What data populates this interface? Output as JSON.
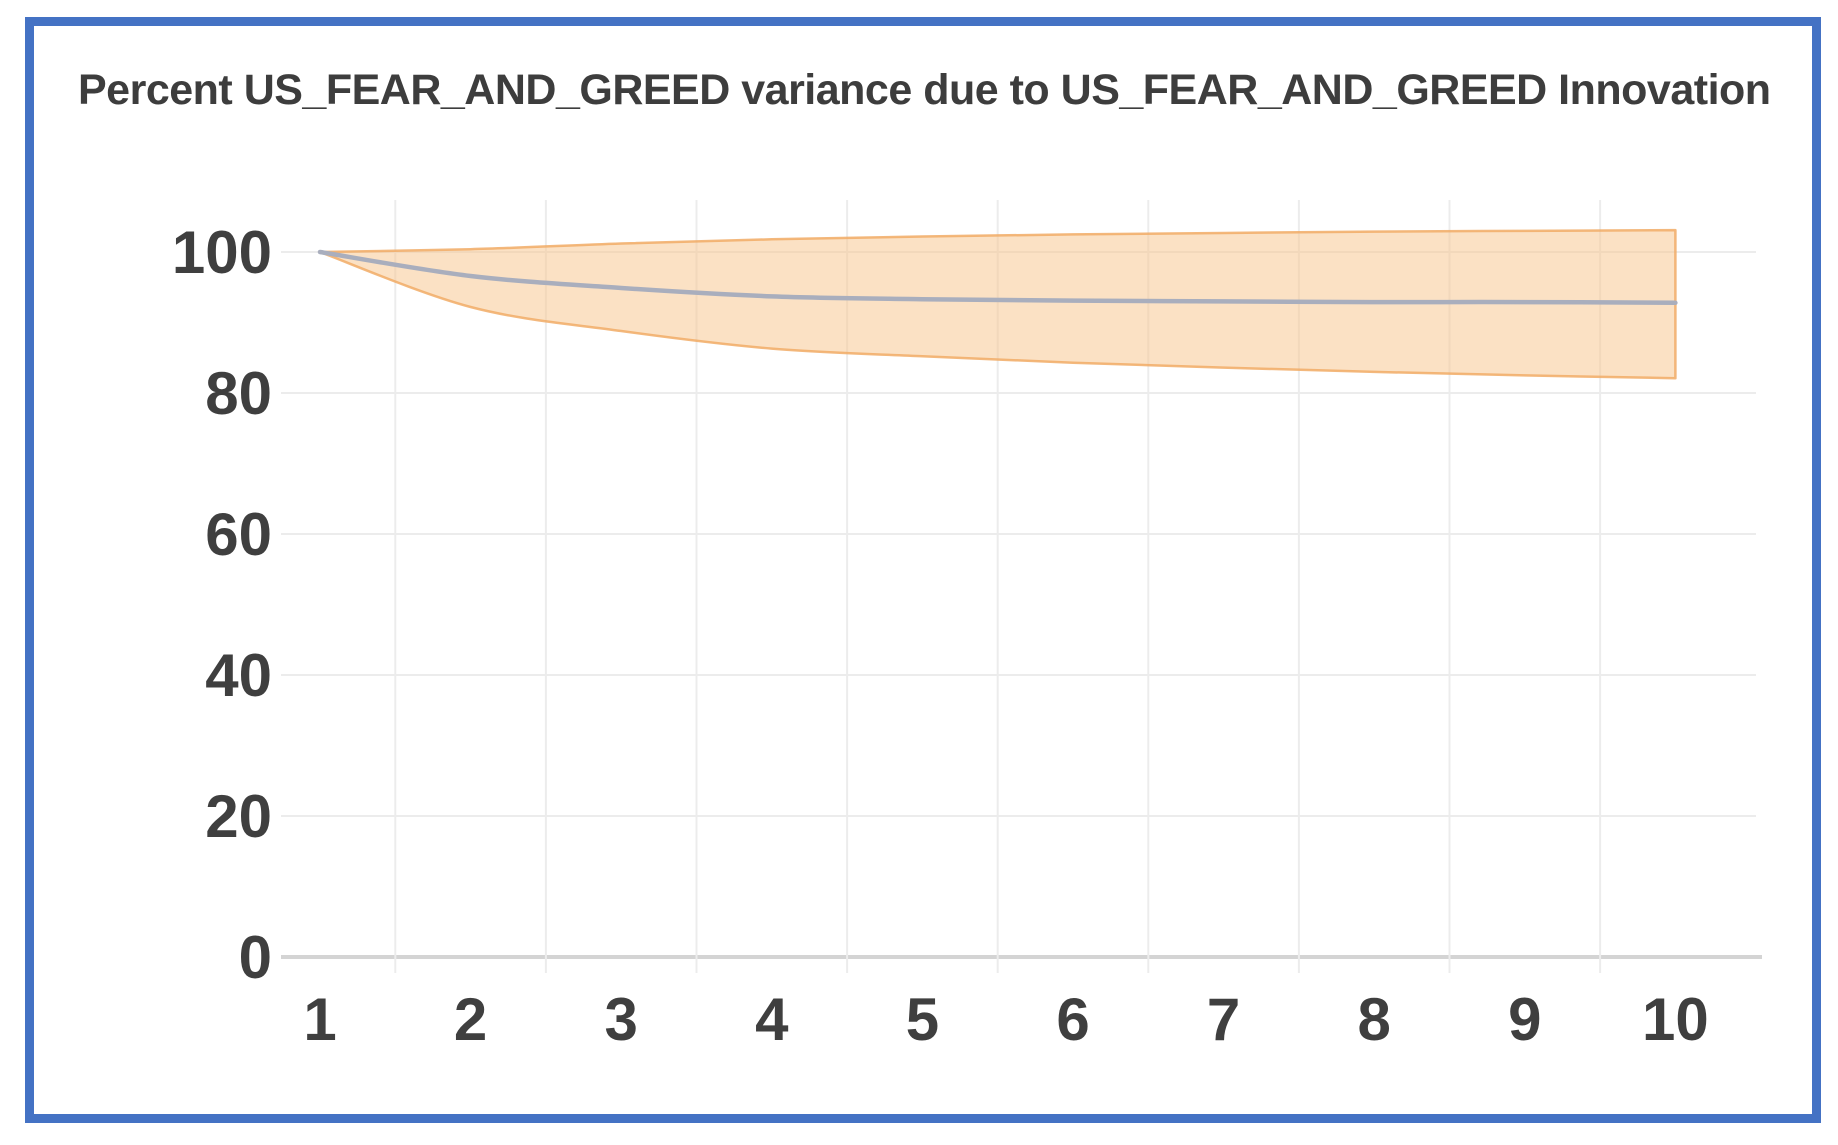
{
  "title": "Percent US_FEAR_AND_GREED variance due to US_FEAR_AND_GREED Innovation",
  "chart_data": {
    "type": "line",
    "title": "Percent US_FEAR_AND_GREED variance due to US_FEAR_AND_GREED Innovation",
    "xlabel": "",
    "ylabel": "",
    "x": [
      1,
      2,
      3,
      4,
      5,
      6,
      7,
      8,
      9,
      10
    ],
    "series": [
      {
        "name": "variance-percent",
        "values": [
          100,
          96.6,
          94.9,
          93.7,
          93.3,
          93.1,
          93.0,
          92.9,
          92.9,
          92.8
        ]
      },
      {
        "name": "ci-lower",
        "values": [
          100,
          92.2,
          88.8,
          86.3,
          85.2,
          84.3,
          83.6,
          83.0,
          82.5,
          82.1
        ]
      },
      {
        "name": "ci-upper",
        "values": [
          100,
          100.4,
          101.2,
          101.8,
          102.2,
          102.5,
          102.7,
          102.9,
          103.0,
          103.1
        ]
      }
    ],
    "yticks": [
      0,
      20,
      40,
      60,
      80,
      100
    ],
    "xticks": [
      1,
      2,
      3,
      4,
      5,
      6,
      7,
      8,
      9,
      10
    ],
    "ylim": [
      0,
      108
    ],
    "grid": true,
    "gridlines_between_categories": true,
    "legend": false,
    "colors": {
      "frame_blue": "#4472C4",
      "band_fill": "#F7C894",
      "band_edge": "#F1AC66",
      "line": "#A9AEBD",
      "gridline": "#ECECEC",
      "axis_line": "#D4D4D4",
      "label_text": "#3f3f3f",
      "title_text": "#3d3d3d"
    }
  }
}
